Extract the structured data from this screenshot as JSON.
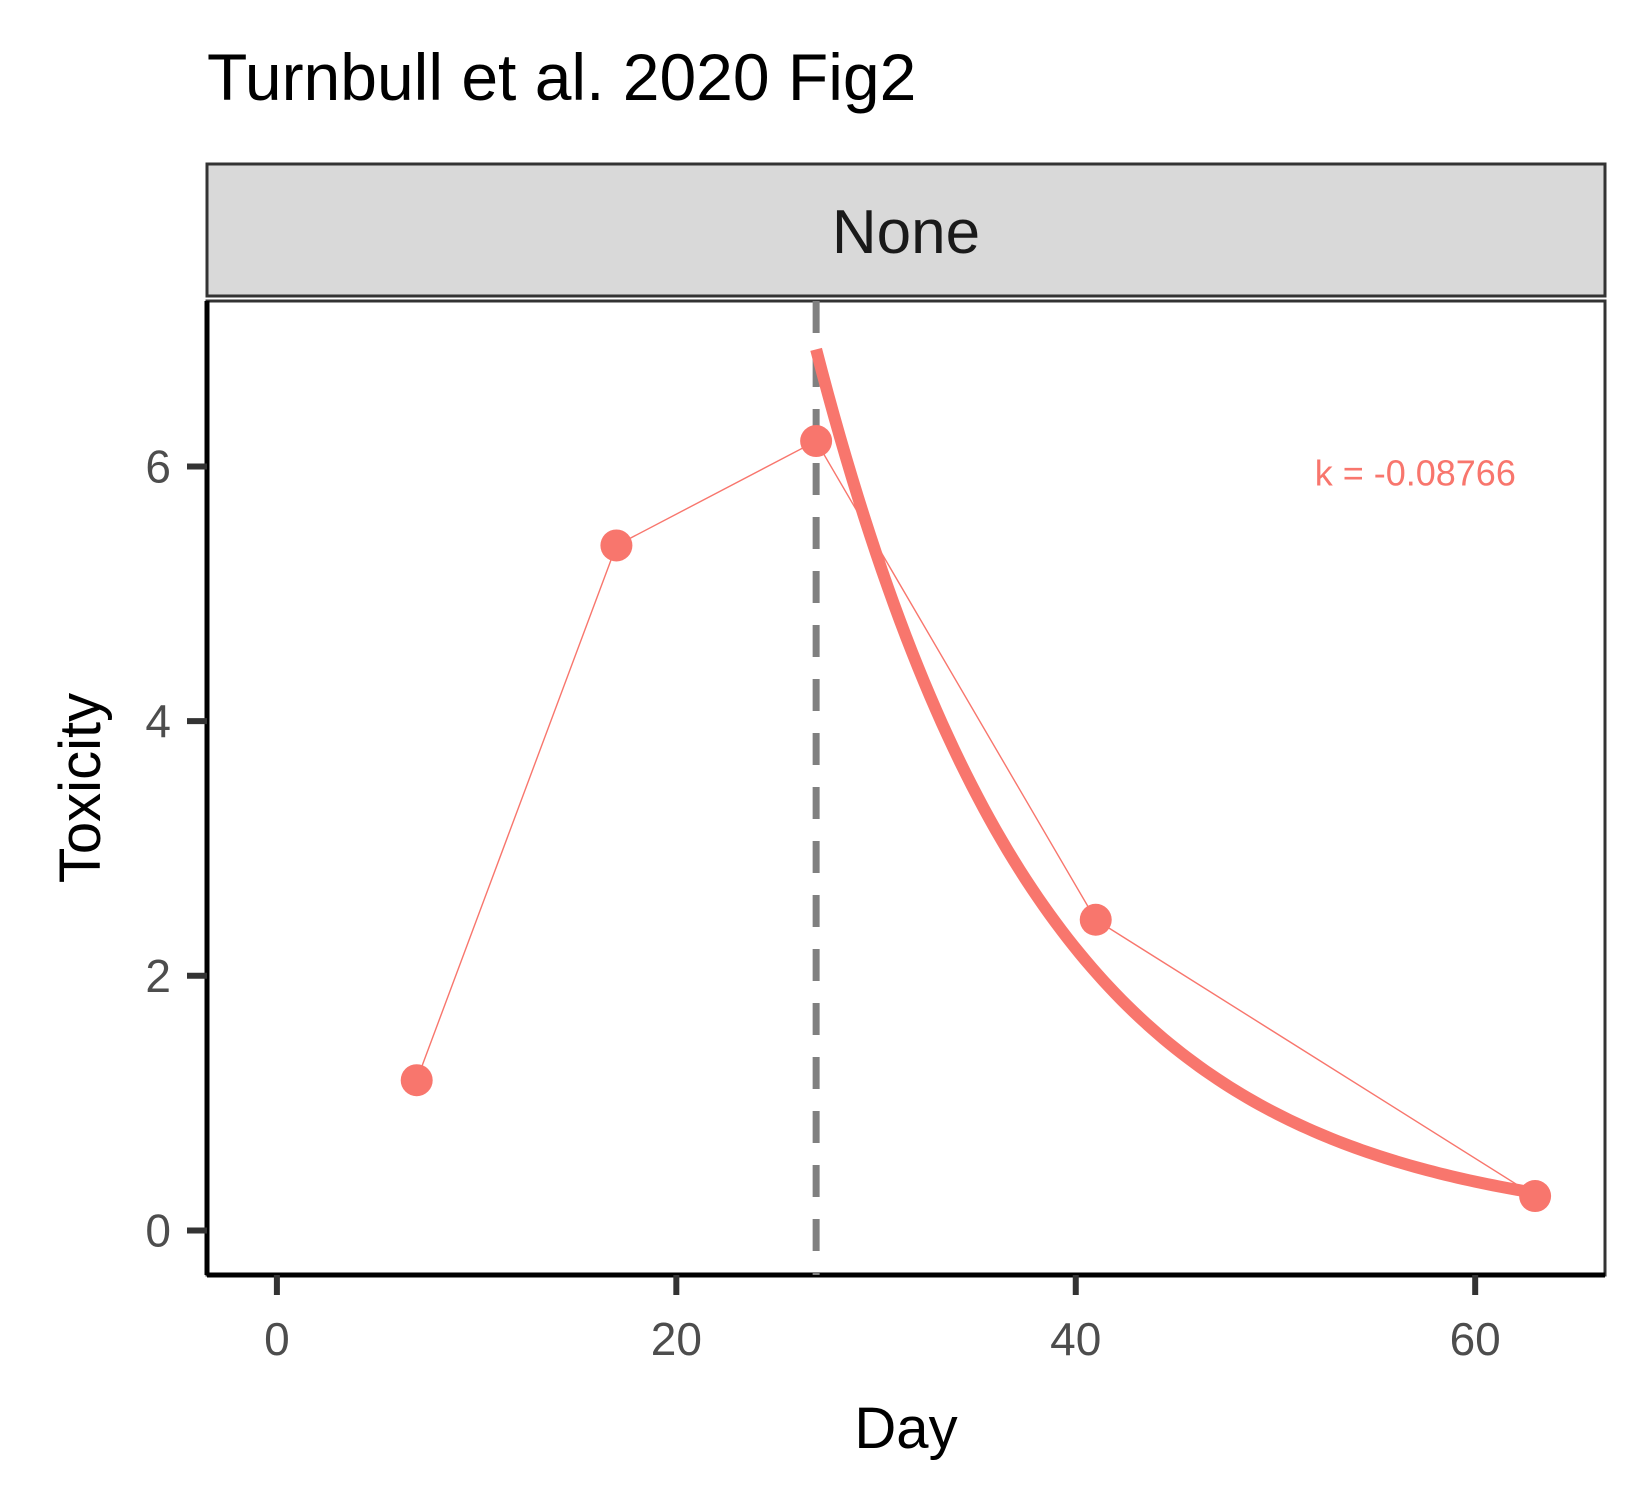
{
  "chart_data": {
    "type": "line",
    "title": "Turnbull et al. 2020 Fig2",
    "facet_label": "None",
    "xlabel": "Day",
    "ylabel": "Toxicity",
    "xlim": [
      -3.5,
      66.5
    ],
    "ylim": [
      -0.35,
      7.3
    ],
    "x_ticks": [
      0,
      20,
      40,
      60
    ],
    "y_ticks": [
      0,
      2,
      4,
      6
    ],
    "x_tick_labels": [
      "0",
      "20",
      "40",
      "60"
    ],
    "y_tick_labels": [
      "0",
      "2",
      "4",
      "6"
    ],
    "grid": false,
    "legend": "none",
    "series": [
      {
        "type": "line+points",
        "color": "#F8766D",
        "points": [
          {
            "x": 7,
            "y": 1.18
          },
          {
            "x": 17,
            "y": 5.38
          },
          {
            "x": 27,
            "y": 6.2
          },
          {
            "x": 41,
            "y": 2.44
          },
          {
            "x": 63,
            "y": 0.27
          }
        ]
      },
      {
        "type": "exponential-fit",
        "color": "#F8766D",
        "x_start": 27,
        "x_end": 63,
        "y_at_start": 6.92,
        "rate": -0.08766
      }
    ],
    "vline": {
      "x": 27,
      "style": "dashed",
      "color": "#808080"
    },
    "annotation": {
      "text": "k = -0.08766",
      "color": "#F8766D",
      "x": 57,
      "y": 5.85
    }
  }
}
